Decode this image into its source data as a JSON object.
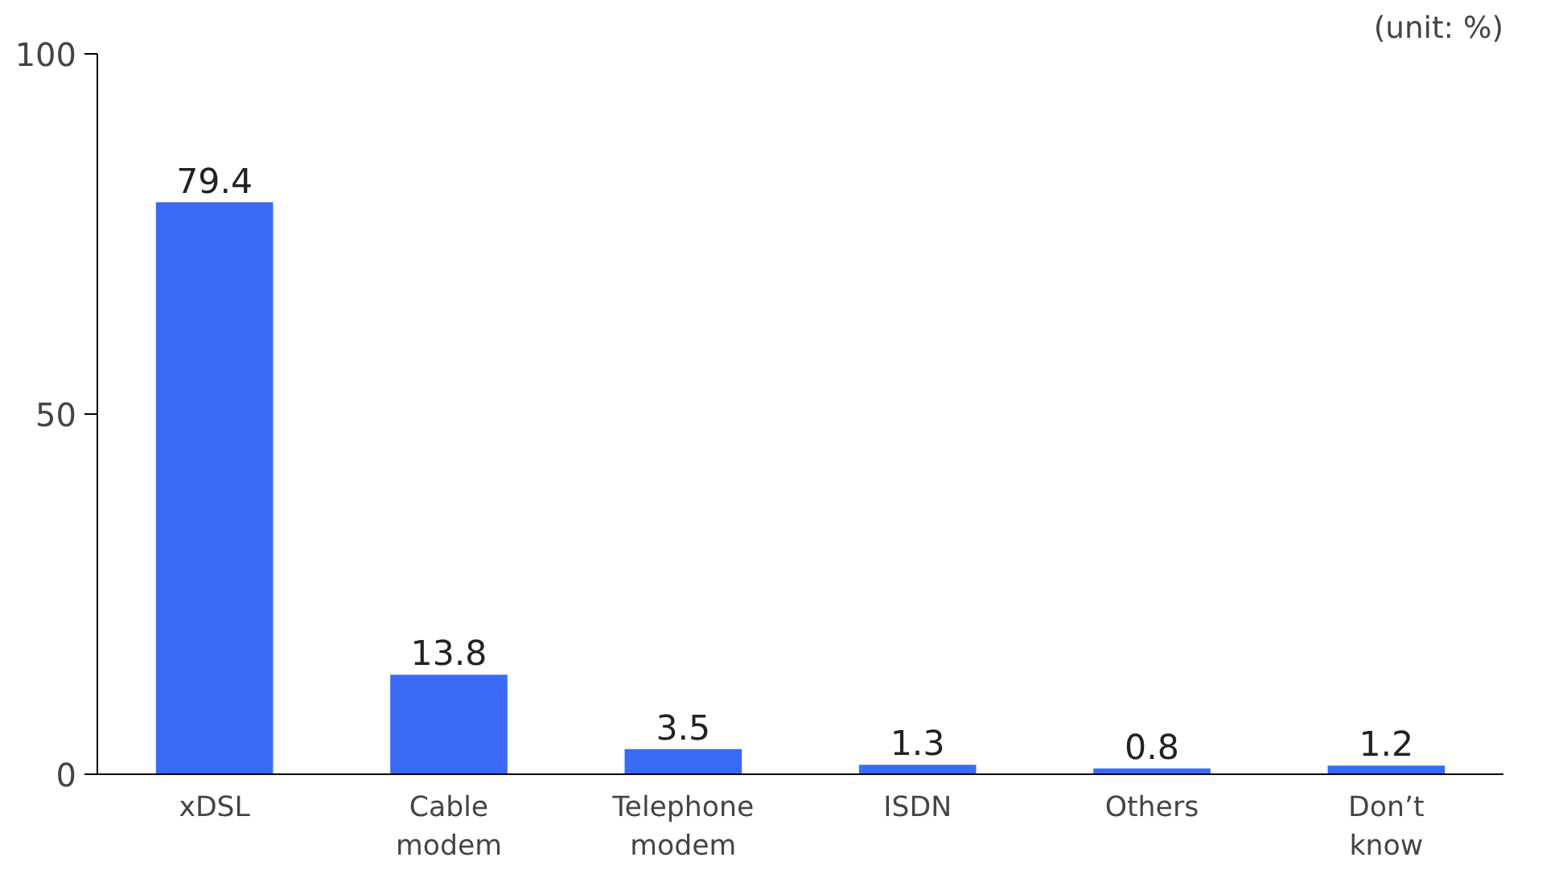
{
  "chart_data": {
    "type": "bar",
    "categories": [
      "xDSL",
      "Cable\nmodem",
      "Telephone\nmodem",
      "ISDN",
      "Others",
      "Don’t\nknow"
    ],
    "values": [
      79.4,
      13.8,
      3.5,
      1.3,
      0.8,
      1.2
    ],
    "color": "#3a6af5",
    "ylim": [
      0,
      100
    ],
    "yticks": [
      0,
      50,
      100
    ],
    "data_labels": true,
    "grid": false,
    "annotations": [
      "(unit: %)"
    ]
  }
}
